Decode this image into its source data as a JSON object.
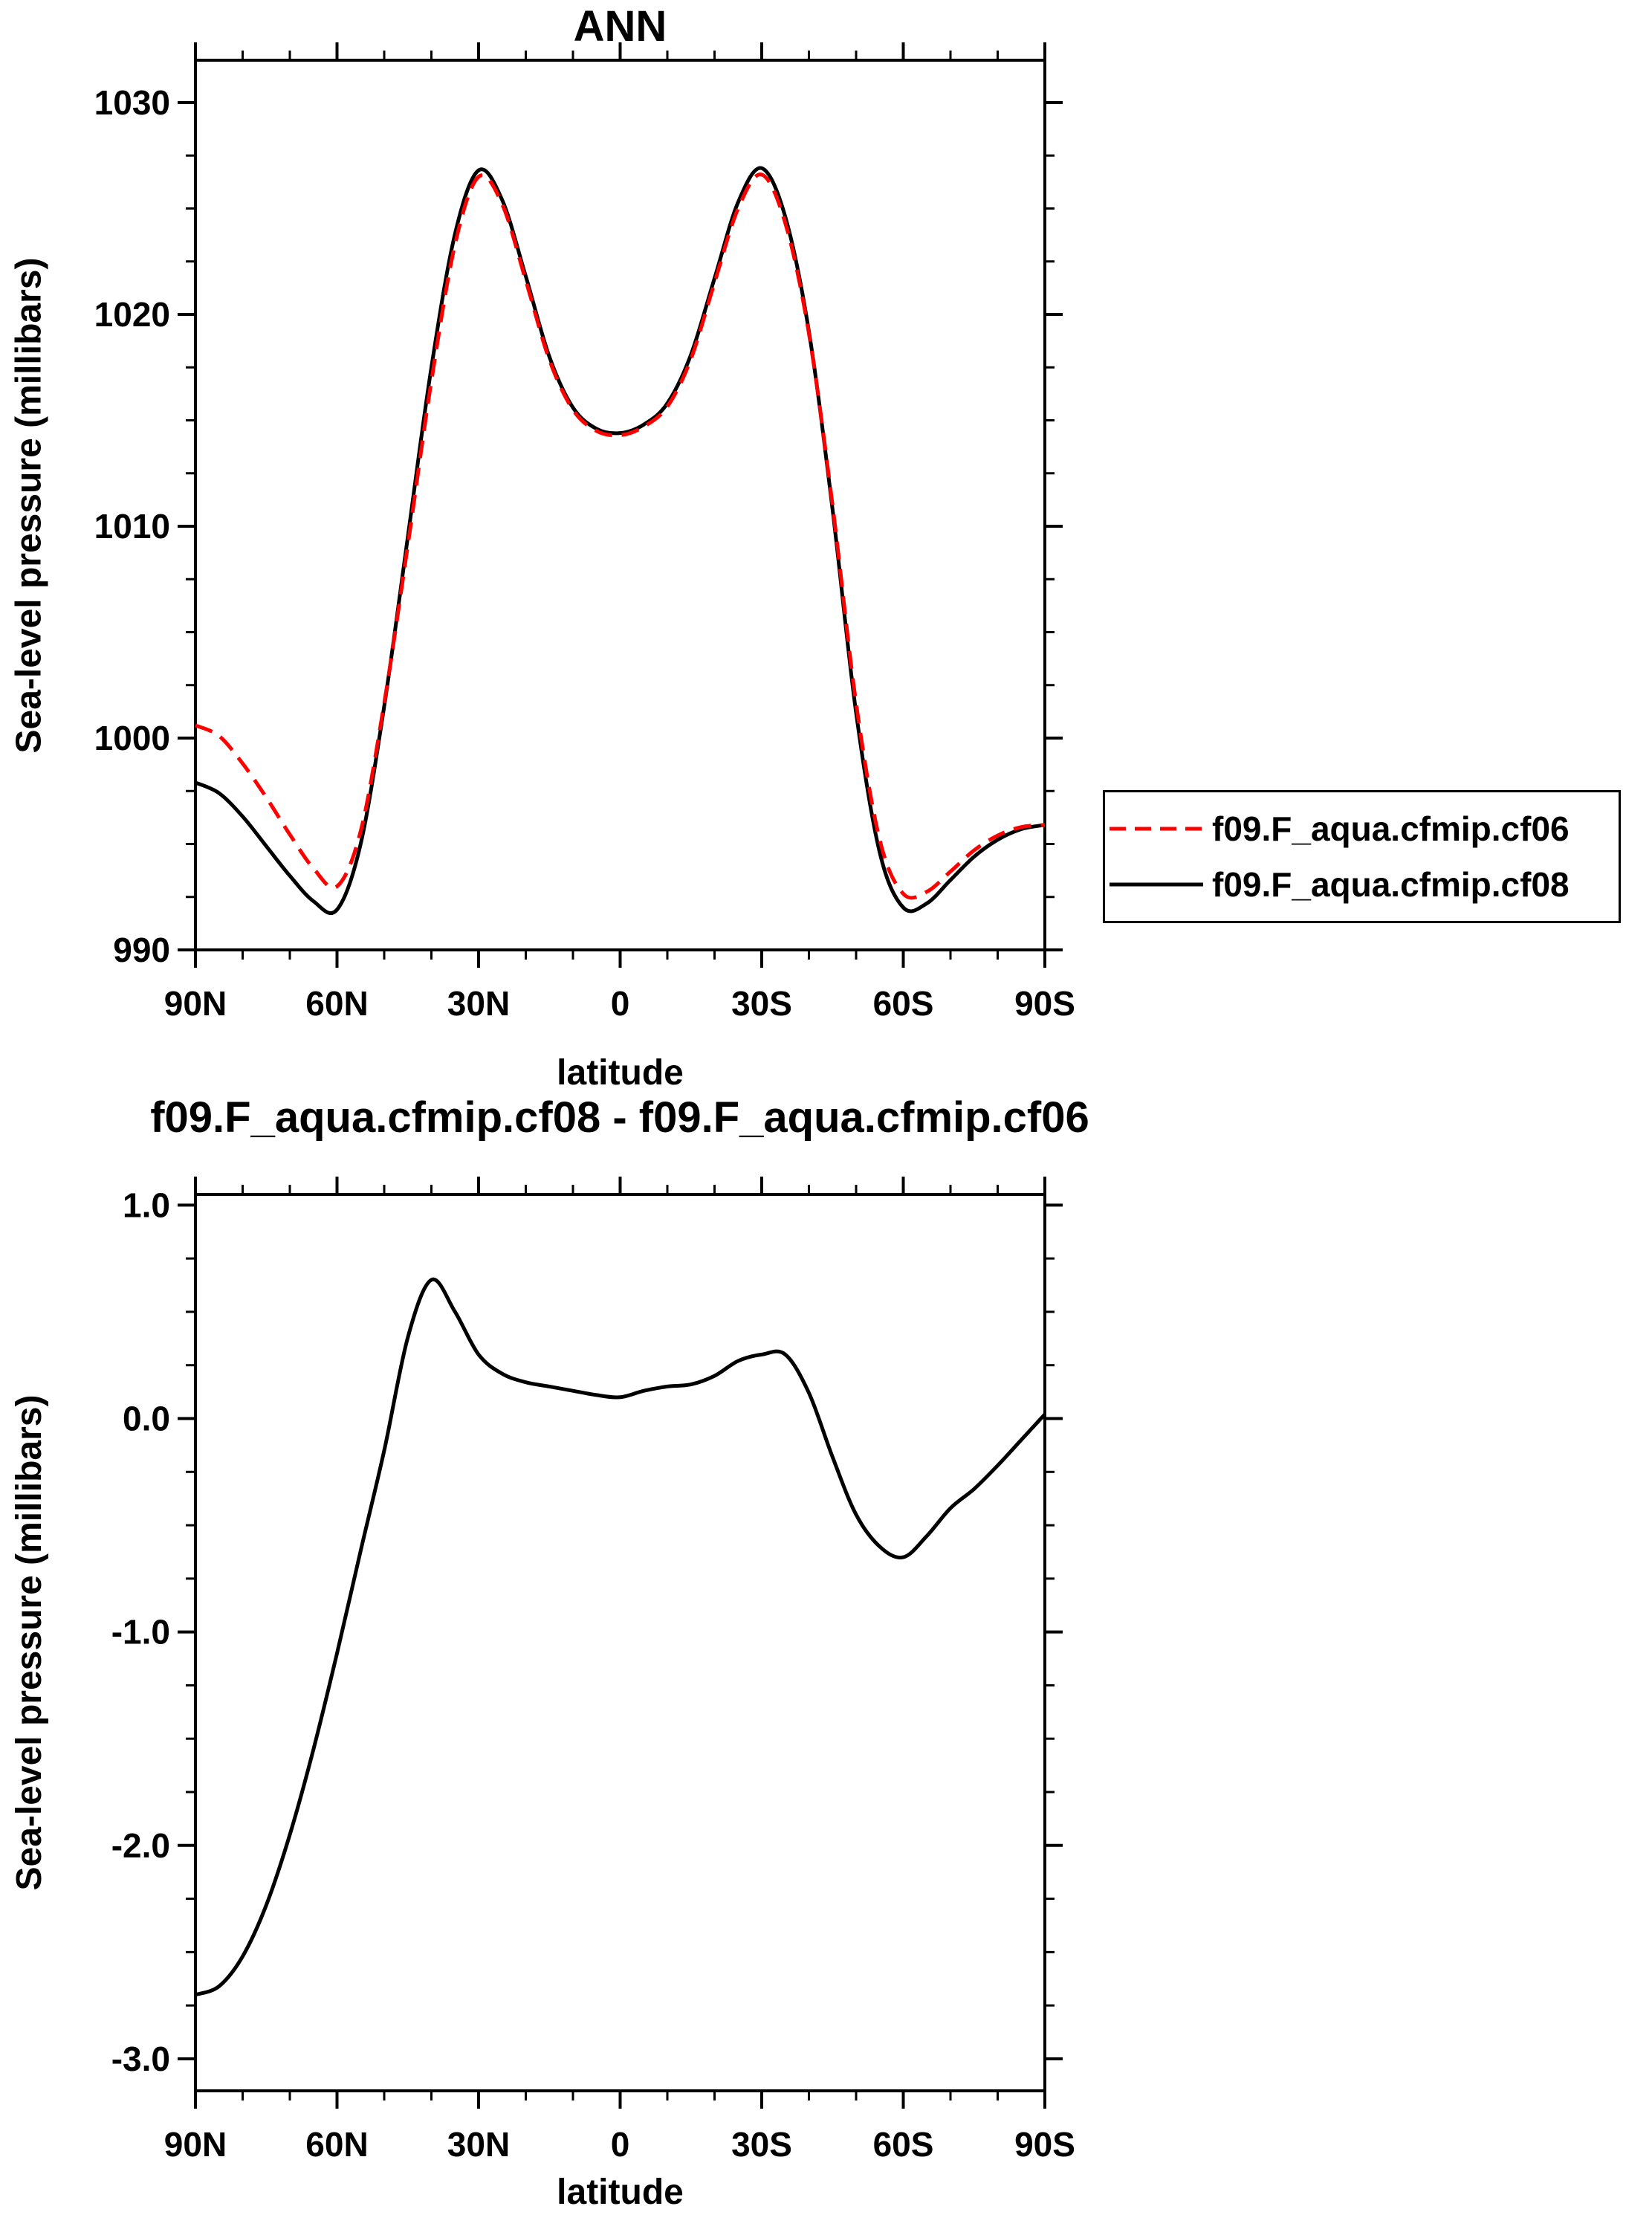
{
  "page_bg": "#ffffff",
  "chart_data": [
    {
      "type": "line",
      "title": "ANN",
      "xlabel": "latitude",
      "ylabel": "Sea-level pressure (millibars)",
      "xlim": [
        90,
        -90
      ],
      "ylim": [
        990,
        1032
      ],
      "xticks": [
        90,
        60,
        30,
        0,
        -30,
        -60,
        -90
      ],
      "xtick_labels": [
        "90N",
        "60N",
        "30N",
        "0",
        "30S",
        "60S",
        "90S"
      ],
      "yticks": [
        990,
        1000,
        1010,
        1020,
        1030
      ],
      "ytick_labels": [
        "990",
        "1000",
        "1010",
        "1020",
        "1030"
      ],
      "minor_x_step": 10,
      "minor_y_step": 2.5,
      "grid": false,
      "legend_position": "outside-right-bottom",
      "x": [
        90,
        85,
        80,
        75,
        70,
        65,
        60,
        55,
        50,
        45,
        40,
        35,
        30,
        25,
        20,
        15,
        10,
        5,
        0,
        -5,
        -10,
        -15,
        -20,
        -25,
        -30,
        -35,
        -40,
        -45,
        -50,
        -55,
        -60,
        -65,
        -70,
        -75,
        -80,
        -85,
        -90
      ],
      "series": [
        {
          "name": "f09.F_aqua.cfmip.cf06",
          "color": "#ff0000",
          "style": "dashed",
          "values": [
            1000.6,
            1000.1,
            998.8,
            997.2,
            995.45,
            993.85,
            993.0,
            995.6,
            1001.65,
            1009.1,
            1016.85,
            1023.3,
            1026.5,
            1025.2,
            1021.6,
            1017.85,
            1015.5,
            1014.5,
            1014.3,
            1014.7,
            1015.65,
            1017.9,
            1021.5,
            1025.0,
            1026.6,
            1024.3,
            1019.1,
            1011.0,
            1001.65,
            995.2,
            992.65,
            992.75,
            993.7,
            994.7,
            995.4,
            995.8,
            995.9
          ]
        },
        {
          "name": "f09.F_aqua.cfmip.cf08",
          "color": "#000000",
          "style": "solid",
          "values": [
            997.9,
            997.4,
            996.3,
            994.9,
            993.5,
            992.3,
            991.9,
            995.0,
            1001.5,
            1009.5,
            1017.5,
            1023.8,
            1026.8,
            1025.4,
            1021.8,
            1018.0,
            1015.6,
            1014.6,
            1014.4,
            1014.8,
            1015.8,
            1018.1,
            1021.7,
            1025.3,
            1026.9,
            1024.6,
            1019.2,
            1010.8,
            1001.2,
            994.6,
            992.0,
            992.2,
            993.3,
            994.4,
            995.2,
            995.7,
            995.9
          ]
        }
      ]
    },
    {
      "type": "line",
      "title": "f09.F_aqua.cfmip.cf08 - f09.F_aqua.cfmip.cf06",
      "xlabel": "latitude",
      "ylabel": "Sea-level pressure (millibars)",
      "xlim": [
        90,
        -90
      ],
      "ylim": [
        -3.15,
        1.05
      ],
      "xticks": [
        90,
        60,
        30,
        0,
        -30,
        -60,
        -90
      ],
      "xtick_labels": [
        "90N",
        "60N",
        "30N",
        "0",
        "30S",
        "60S",
        "90S"
      ],
      "yticks": [
        1.0,
        0.0,
        -1.0,
        -2.0,
        -3.0
      ],
      "ytick_labels": [
        "1.0",
        "0.0",
        "-1.0",
        "-2.0",
        "-3.0"
      ],
      "minor_x_step": 10,
      "minor_y_step": 0.25,
      "grid": false,
      "x": [
        90,
        85,
        80,
        75,
        70,
        65,
        60,
        55,
        50,
        45,
        40,
        35,
        30,
        25,
        20,
        15,
        10,
        5,
        0,
        -5,
        -10,
        -15,
        -20,
        -25,
        -30,
        -35,
        -40,
        -45,
        -50,
        -55,
        -60,
        -65,
        -70,
        -75,
        -80,
        -85,
        -90
      ],
      "series": [
        {
          "name": "f09.F_aqua.cfmip.cf08 - f09.F_aqua.cfmip.cf06",
          "color": "#000000",
          "style": "solid",
          "values": [
            -2.7,
            -2.66,
            -2.52,
            -2.28,
            -1.95,
            -1.55,
            -1.1,
            -0.62,
            -0.15,
            0.38,
            0.65,
            0.5,
            0.3,
            0.21,
            0.17,
            0.15,
            0.13,
            0.11,
            0.1,
            0.13,
            0.15,
            0.16,
            0.2,
            0.27,
            0.3,
            0.3,
            0.12,
            -0.18,
            -0.45,
            -0.6,
            -0.65,
            -0.55,
            -0.42,
            -0.33,
            -0.22,
            -0.1,
            0.02
          ]
        }
      ]
    }
  ]
}
